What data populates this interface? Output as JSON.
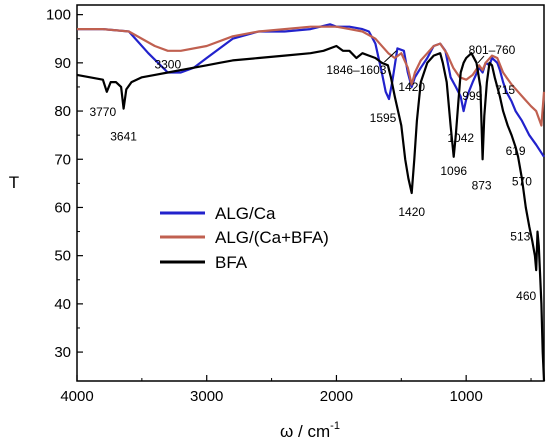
{
  "chart_data": {
    "type": "line",
    "xlabel": "ω / cm",
    "xlabel_sup": "-1",
    "ylabel": "T",
    "xlim": [
      4000,
      400
    ],
    "ylim": [
      24,
      102
    ],
    "x_reversed": true,
    "grid": false,
    "legend_position": "center-left",
    "x_ticks": [
      4000,
      3000,
      2000,
      1000
    ],
    "y_ticks": [
      30,
      40,
      50,
      60,
      70,
      80,
      90,
      100
    ],
    "series": [
      {
        "name": "ALG/Ca",
        "color": "#2222cc",
        "x": [
          4000,
          3800,
          3600,
          3450,
          3300,
          3200,
          3100,
          3000,
          2900,
          2800,
          2600,
          2400,
          2200,
          2050,
          2000,
          1900,
          1800,
          1750,
          1700,
          1650,
          1620,
          1595,
          1570,
          1530,
          1480,
          1450,
          1420,
          1395,
          1350,
          1300,
          1250,
          1200,
          1160,
          1120,
          1080,
          1042,
          1020,
          999,
          980,
          950,
          900,
          873,
          850,
          820,
          801,
          780,
          760,
          740,
          715,
          690,
          650,
          619,
          570,
          513,
          460,
          400
        ],
        "values": [
          97,
          97,
          96.5,
          92,
          88,
          88,
          89,
          91,
          93,
          95,
          96.5,
          96.5,
          97,
          98,
          97.5,
          97.5,
          97,
          96.5,
          94,
          88,
          84,
          82.5,
          86,
          93,
          92.5,
          88,
          85,
          87,
          89,
          91,
          93.5,
          94,
          92.5,
          87,
          85,
          83,
          80,
          82.5,
          84,
          86,
          89,
          88,
          90,
          89.5,
          91,
          90.5,
          90,
          88.5,
          86,
          84,
          82,
          80,
          78,
          75,
          73,
          70.5
        ]
      },
      {
        "name": "ALG/(Ca+BFA)",
        "color": "#c06050",
        "x": [
          4000,
          3800,
          3600,
          3400,
          3300,
          3200,
          3000,
          2800,
          2600,
          2400,
          2200,
          2000,
          1900,
          1800,
          1700,
          1600,
          1550,
          1500,
          1450,
          1420,
          1395,
          1350,
          1300,
          1250,
          1200,
          1150,
          1100,
          1050,
          1000,
          950,
          900,
          873,
          850,
          801,
          760,
          715,
          690,
          650,
          600,
          550,
          500,
          460,
          420,
          400
        ],
        "values": [
          97,
          97,
          96.5,
          93.5,
          92.5,
          92.5,
          93.5,
          95.5,
          96.5,
          97,
          97.5,
          97.5,
          97,
          96.5,
          95,
          92,
          91,
          92,
          89,
          85.5,
          88,
          90.5,
          92,
          93.5,
          94,
          92,
          89,
          87,
          86.5,
          87.5,
          89.5,
          88.5,
          90,
          91.5,
          91,
          88,
          87,
          85.5,
          84,
          82.5,
          81,
          80,
          77,
          84
        ]
      },
      {
        "name": "BFA",
        "color": "#000000",
        "x": [
          4000,
          3900,
          3800,
          3770,
          3740,
          3700,
          3660,
          3641,
          3620,
          3580,
          3500,
          3400,
          3300,
          3200,
          3100,
          3000,
          2900,
          2800,
          2600,
          2400,
          2200,
          2100,
          2000,
          1950,
          1900,
          1846,
          1800,
          1750,
          1700,
          1650,
          1603,
          1580,
          1550,
          1500,
          1470,
          1445,
          1420,
          1400,
          1380,
          1350,
          1300,
          1250,
          1200,
          1180,
          1150,
          1120,
          1096,
          1080,
          1060,
          1042,
          1020,
          1000,
          960,
          920,
          890,
          873,
          860,
          840,
          820,
          801,
          780,
          760,
          740,
          715,
          680,
          650,
          619,
          600,
          570,
          540,
          513,
          490,
          470,
          460,
          450,
          440,
          430,
          420,
          410,
          400
        ],
        "values": [
          87.5,
          87,
          86.5,
          84,
          86,
          86,
          85,
          80.5,
          84.5,
          86,
          87,
          87.5,
          88,
          88.5,
          89,
          89.5,
          90,
          90.5,
          91,
          91.5,
          92,
          92.5,
          93.5,
          92.5,
          92.5,
          91,
          92,
          91.5,
          91,
          90,
          89.5,
          87,
          83,
          77,
          70,
          66,
          63,
          70,
          78,
          86,
          90,
          91.5,
          92,
          90,
          86,
          77,
          70.5,
          75,
          82,
          88,
          90,
          91,
          92,
          90,
          85,
          70,
          79,
          86,
          90,
          89.5,
          87,
          85,
          83,
          80,
          77,
          75,
          72.5,
          70.5,
          66,
          60,
          56,
          53,
          50,
          47,
          55,
          52,
          46,
          40,
          30,
          24
        ]
      }
    ],
    "annotations": [
      {
        "text": "3770",
        "x": 3770,
        "y": 84
      },
      {
        "text": "3641",
        "x": 3641,
        "y": 80.5
      },
      {
        "text": "3300",
        "x": 3300,
        "y": 88
      },
      {
        "text": "1846–1603",
        "x": 1846,
        "y": 91
      },
      {
        "text": "1595",
        "x": 1595,
        "y": 82.5
      },
      {
        "text": "1420",
        "x": 1420,
        "y": 85
      },
      {
        "text": "1420",
        "x": 1420,
        "y": 63
      },
      {
        "text": "1096",
        "x": 1096,
        "y": 70.5
      },
      {
        "text": "1042",
        "x": 1042,
        "y": 80
      },
      {
        "text": "999",
        "x": 999,
        "y": 82.5
      },
      {
        "text": "873",
        "x": 873,
        "y": 70
      },
      {
        "text": "801–760",
        "x": 801,
        "y": 91
      },
      {
        "text": "715",
        "x": 715,
        "y": 86
      },
      {
        "text": "619",
        "x": 619,
        "y": 72.5
      },
      {
        "text": "570",
        "x": 570,
        "y": 66
      },
      {
        "text": "513",
        "x": 513,
        "y": 56
      },
      {
        "text": "460",
        "x": 460,
        "y": 47
      }
    ]
  }
}
